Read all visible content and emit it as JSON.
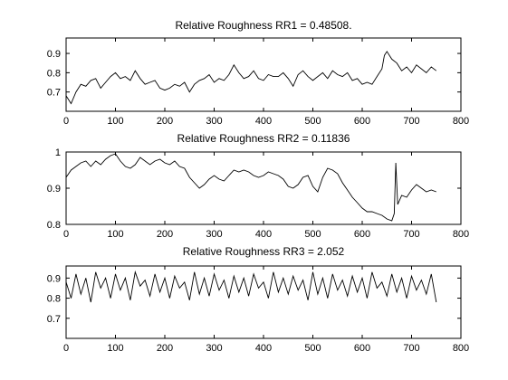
{
  "figure": {
    "background": "#ffffff",
    "line_color": "#000000"
  },
  "chart_data": [
    {
      "type": "line",
      "title": "Relative Roughness RR1 = 0.48508.",
      "xlabel": "",
      "ylabel": "",
      "xlim": [
        0,
        800
      ],
      "ylim": [
        0.6,
        0.98
      ],
      "xticks": [
        0,
        100,
        200,
        300,
        400,
        500,
        600,
        700,
        800
      ],
      "yticks": [
        0.7,
        0.8,
        0.9
      ],
      "grid": false,
      "series": [
        {
          "x": [
            0,
            10,
            20,
            30,
            40,
            50,
            60,
            70,
            80,
            90,
            100,
            110,
            120,
            130,
            140,
            150,
            160,
            170,
            180,
            190,
            200,
            210,
            220,
            230,
            240,
            250,
            260,
            270,
            280,
            290,
            300,
            310,
            320,
            330,
            340,
            350,
            360,
            370,
            380,
            390,
            400,
            410,
            420,
            430,
            440,
            450,
            460,
            470,
            480,
            490,
            500,
            510,
            520,
            530,
            540,
            550,
            560,
            570,
            580,
            590,
            600,
            610,
            620,
            630,
            640,
            645,
            650,
            660,
            670,
            680,
            690,
            700,
            710,
            720,
            730,
            740,
            750
          ],
          "y": [
            0.68,
            0.64,
            0.7,
            0.74,
            0.73,
            0.76,
            0.77,
            0.72,
            0.75,
            0.78,
            0.8,
            0.77,
            0.78,
            0.76,
            0.81,
            0.77,
            0.74,
            0.75,
            0.76,
            0.72,
            0.71,
            0.72,
            0.74,
            0.73,
            0.75,
            0.7,
            0.74,
            0.76,
            0.77,
            0.79,
            0.75,
            0.77,
            0.76,
            0.79,
            0.84,
            0.8,
            0.77,
            0.78,
            0.81,
            0.77,
            0.76,
            0.79,
            0.78,
            0.78,
            0.8,
            0.77,
            0.73,
            0.79,
            0.81,
            0.78,
            0.76,
            0.78,
            0.8,
            0.77,
            0.81,
            0.79,
            0.78,
            0.8,
            0.76,
            0.77,
            0.74,
            0.75,
            0.74,
            0.78,
            0.82,
            0.89,
            0.91,
            0.87,
            0.85,
            0.81,
            0.83,
            0.8,
            0.84,
            0.82,
            0.8,
            0.83,
            0.81
          ]
        }
      ]
    },
    {
      "type": "line",
      "title": "Relative Roughness RR2 = 0.11836",
      "xlabel": "",
      "ylabel": "",
      "xlim": [
        0,
        800
      ],
      "ylim": [
        0.8,
        1.0
      ],
      "xticks": [
        0,
        100,
        200,
        300,
        400,
        500,
        600,
        700,
        800
      ],
      "yticks": [
        0.8,
        0.9,
        1
      ],
      "grid": false,
      "series": [
        {
          "x": [
            0,
            10,
            20,
            30,
            40,
            50,
            60,
            70,
            80,
            90,
            100,
            110,
            120,
            130,
            140,
            150,
            160,
            170,
            180,
            190,
            200,
            210,
            220,
            230,
            240,
            250,
            260,
            270,
            280,
            290,
            300,
            310,
            320,
            330,
            340,
            350,
            360,
            370,
            380,
            390,
            400,
            410,
            420,
            430,
            440,
            450,
            460,
            470,
            480,
            490,
            500,
            510,
            520,
            530,
            540,
            550,
            560,
            570,
            580,
            590,
            600,
            610,
            620,
            630,
            640,
            650,
            660,
            665,
            668,
            672,
            680,
            690,
            700,
            710,
            720,
            730,
            740,
            750
          ],
          "y": [
            0.93,
            0.95,
            0.96,
            0.97,
            0.975,
            0.96,
            0.975,
            0.965,
            0.98,
            0.99,
            0.995,
            0.975,
            0.96,
            0.955,
            0.965,
            0.985,
            0.975,
            0.965,
            0.975,
            0.98,
            0.97,
            0.965,
            0.975,
            0.96,
            0.955,
            0.93,
            0.915,
            0.9,
            0.91,
            0.925,
            0.935,
            0.925,
            0.92,
            0.935,
            0.95,
            0.945,
            0.95,
            0.945,
            0.935,
            0.93,
            0.935,
            0.945,
            0.94,
            0.935,
            0.925,
            0.905,
            0.9,
            0.91,
            0.93,
            0.935,
            0.905,
            0.89,
            0.93,
            0.955,
            0.95,
            0.94,
            0.915,
            0.895,
            0.875,
            0.86,
            0.845,
            0.835,
            0.835,
            0.83,
            0.825,
            0.815,
            0.81,
            0.83,
            0.97,
            0.855,
            0.88,
            0.875,
            0.895,
            0.91,
            0.9,
            0.89,
            0.895,
            0.89
          ]
        }
      ]
    },
    {
      "type": "line",
      "title": "Relative Roughness RR3 = 2.052",
      "xlabel": "",
      "ylabel": "",
      "xlim": [
        0,
        800
      ],
      "ylim": [
        0.6,
        0.96
      ],
      "xticks": [
        0,
        100,
        200,
        300,
        400,
        500,
        600,
        700,
        800
      ],
      "yticks": [
        0.7,
        0.8,
        0.9
      ],
      "grid": false,
      "series": [
        {
          "x": [
            0,
            10,
            20,
            30,
            40,
            50,
            60,
            70,
            80,
            90,
            100,
            110,
            120,
            130,
            140,
            150,
            160,
            170,
            180,
            190,
            200,
            210,
            220,
            230,
            240,
            250,
            260,
            270,
            280,
            290,
            300,
            310,
            320,
            330,
            340,
            350,
            360,
            370,
            380,
            390,
            400,
            410,
            420,
            430,
            440,
            450,
            460,
            470,
            480,
            490,
            500,
            510,
            520,
            530,
            540,
            550,
            560,
            570,
            580,
            590,
            600,
            610,
            620,
            630,
            640,
            650,
            660,
            670,
            680,
            690,
            700,
            710,
            720,
            730,
            740,
            750
          ],
          "y": [
            0.88,
            0.8,
            0.92,
            0.82,
            0.9,
            0.78,
            0.93,
            0.85,
            0.9,
            0.8,
            0.92,
            0.84,
            0.9,
            0.79,
            0.93,
            0.86,
            0.89,
            0.81,
            0.92,
            0.83,
            0.9,
            0.8,
            0.91,
            0.85,
            0.88,
            0.79,
            0.93,
            0.82,
            0.9,
            0.81,
            0.92,
            0.84,
            0.89,
            0.8,
            0.91,
            0.83,
            0.9,
            0.81,
            0.92,
            0.85,
            0.88,
            0.8,
            0.93,
            0.83,
            0.9,
            0.82,
            0.91,
            0.84,
            0.89,
            0.79,
            0.93,
            0.82,
            0.9,
            0.8,
            0.92,
            0.84,
            0.89,
            0.81,
            0.91,
            0.83,
            0.9,
            0.8,
            0.93,
            0.85,
            0.88,
            0.81,
            0.92,
            0.83,
            0.9,
            0.8,
            0.91,
            0.84,
            0.89,
            0.82,
            0.92,
            0.78
          ]
        }
      ]
    }
  ]
}
